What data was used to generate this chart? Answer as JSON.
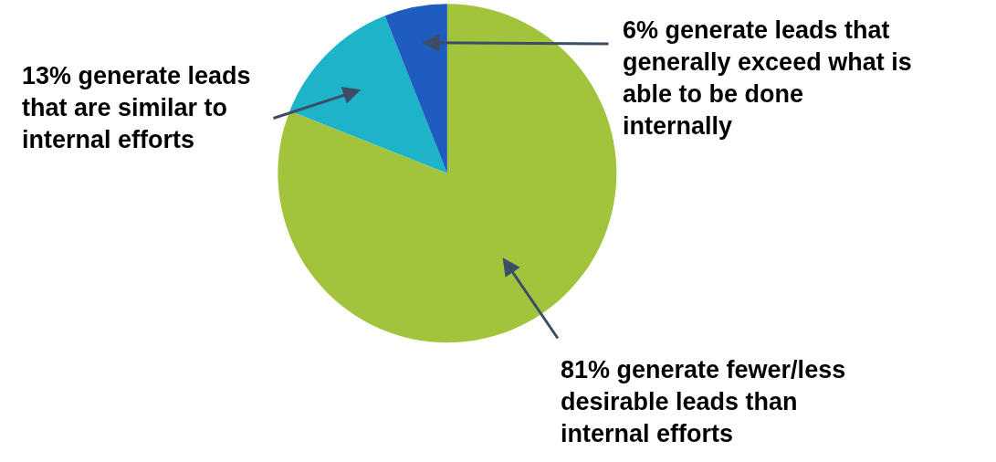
{
  "chart_data": {
    "type": "pie",
    "categories": [
      "81% generate fewer/less desirable leads than internal efforts",
      "13% generate leads that are similar to internal efforts",
      "6% generate leads that generally exceed what is able to be done internally"
    ],
    "values": [
      81,
      13,
      6
    ],
    "colors": [
      "#a2c43c",
      "#1db3c9",
      "#1f5cbf"
    ],
    "legend": false
  }
}
